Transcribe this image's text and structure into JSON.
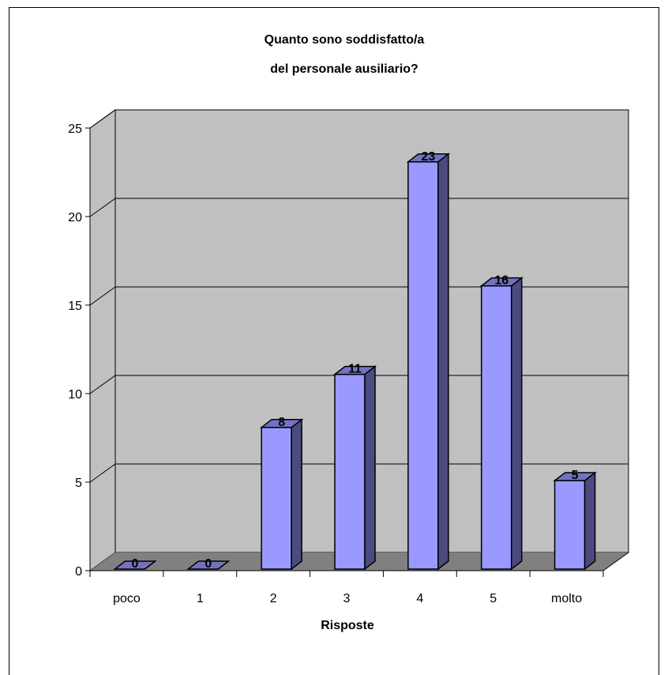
{
  "chart_data": {
    "type": "bar",
    "title_lines": [
      "Quanto sono soddisfatto/a",
      "del personale ausiliario?"
    ],
    "xlabel": "Risposte",
    "ylabel": "",
    "categories": [
      "poco",
      "1",
      "2",
      "3",
      "4",
      "5",
      "molto"
    ],
    "values": [
      0,
      0,
      8,
      11,
      23,
      16,
      5
    ],
    "data_labels": [
      "0",
      "0",
      "8",
      "11",
      "23",
      "16",
      "5"
    ],
    "ylim": [
      0,
      25
    ],
    "yticks": [
      0,
      5,
      10,
      15,
      20,
      25
    ],
    "grid": true,
    "legend": "none",
    "three_d": true,
    "colors": {
      "bar_front": "#9999ff",
      "bar_side": "#4b4b80",
      "bar_top": "#7373c0",
      "wall": "#c0c0c0",
      "floor": "#808080",
      "outline": "#000000"
    }
  }
}
